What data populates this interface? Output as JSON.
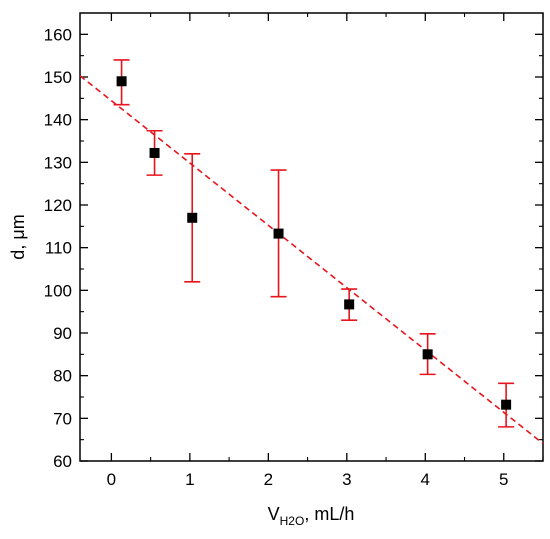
{
  "chart_data": {
    "type": "scatter",
    "title": "",
    "xlabel": {
      "main": "V",
      "subscript": "H2O",
      "suffix": ", mL/h"
    },
    "ylabel": "d, μm",
    "xlim": [
      -0.4,
      5.5
    ],
    "ylim": [
      60,
      165
    ],
    "xticks": [
      0,
      1,
      2,
      3,
      4,
      5
    ],
    "yticks": [
      60,
      70,
      80,
      90,
      100,
      110,
      120,
      130,
      140,
      150,
      160
    ],
    "grid": false,
    "legend": "none",
    "series": [
      {
        "marker": "square",
        "color": "#000000",
        "error_color": "#e8141c",
        "points": [
          {
            "x": 0.13,
            "y": 149,
            "err_low": 143.5,
            "err_high": 154
          },
          {
            "x": 0.55,
            "y": 132.2,
            "err_low": 127,
            "err_high": 137.4
          },
          {
            "x": 1.03,
            "y": 117,
            "err_low": 102,
            "err_high": 132
          },
          {
            "x": 2.13,
            "y": 113.3,
            "err_low": 98.5,
            "err_high": 128.2
          },
          {
            "x": 3.03,
            "y": 96.7,
            "err_low": 93,
            "err_high": 100.3
          },
          {
            "x": 4.03,
            "y": 85,
            "err_low": 80.3,
            "err_high": 89.8
          },
          {
            "x": 5.03,
            "y": 73.2,
            "err_low": 68,
            "err_high": 78.2
          }
        ]
      }
    ],
    "fit_line": {
      "style": "dashed",
      "color": "#e8141c",
      "points": [
        [
          -0.4,
          150.3
        ],
        [
          5.5,
          64.1
        ]
      ]
    }
  }
}
